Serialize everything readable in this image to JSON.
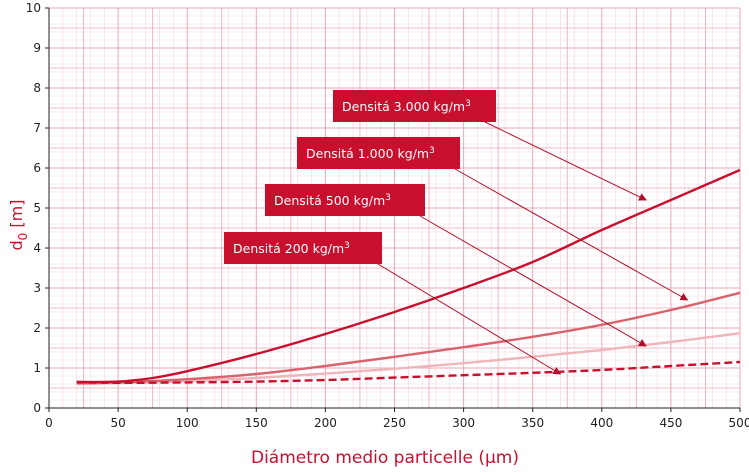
{
  "chart_data": {
    "type": "line",
    "xlabel": "Diámetro medio particelle (µm)",
    "ylabel": {
      "main": "d",
      "sub": "0",
      "rest": " [m]"
    },
    "xlim": [
      0,
      500
    ],
    "ylim": [
      0,
      10
    ],
    "x_ticks": [
      0,
      50,
      100,
      150,
      200,
      250,
      300,
      350,
      400,
      450,
      500
    ],
    "y_ticks": [
      0,
      1,
      2,
      3,
      4,
      5,
      6,
      7,
      8,
      9,
      10
    ],
    "grid": true,
    "colors": {
      "grid_major": "#e9a9b4",
      "grid_minor": "#f6d6dc",
      "series_3000": "#c8102e",
      "series_1000": "#d9636d",
      "series_500": "#efb5bb",
      "series_200": "#c8102e",
      "label_box": "#c8102e",
      "arrow": "#b0102a"
    },
    "series": [
      {
        "key": "s3000",
        "style": "solid",
        "color_key": "series_3000",
        "x": [
          20,
          50,
          75,
          100,
          150,
          200,
          250,
          300,
          350,
          400,
          450,
          500
        ],
        "y": [
          0.65,
          0.66,
          0.75,
          0.92,
          1.35,
          1.85,
          2.4,
          3.0,
          3.65,
          4.45,
          5.2,
          5.95
        ]
      },
      {
        "key": "s1000",
        "style": "solid",
        "color_key": "series_1000",
        "x": [
          20,
          50,
          100,
          150,
          200,
          250,
          300,
          350,
          400,
          450,
          500
        ],
        "y": [
          0.62,
          0.64,
          0.72,
          0.85,
          1.05,
          1.28,
          1.52,
          1.78,
          2.08,
          2.45,
          2.88
        ]
      },
      {
        "key": "s500",
        "style": "solid",
        "color_key": "series_500",
        "x": [
          20,
          50,
          100,
          150,
          200,
          250,
          300,
          350,
          400,
          450,
          500
        ],
        "y": [
          0.6,
          0.62,
          0.67,
          0.75,
          0.86,
          0.98,
          1.12,
          1.28,
          1.45,
          1.65,
          1.87
        ]
      },
      {
        "key": "s200",
        "style": "dashed",
        "color_key": "series_200",
        "x": [
          20,
          50,
          100,
          150,
          200,
          250,
          300,
          350,
          400,
          450,
          500
        ],
        "y": [
          0.65,
          0.63,
          0.64,
          0.66,
          0.7,
          0.76,
          0.82,
          0.88,
          0.95,
          1.05,
          1.15
        ]
      }
    ],
    "annotations": [
      {
        "text": "Densitá 3.000 kg/m",
        "sup": "3",
        "series": "s3000",
        "target": [
          432,
          5.2
        ]
      },
      {
        "text": "Densitá 1.000 kg/m",
        "sup": "3",
        "series": "s1000",
        "target": [
          462,
          2.7
        ]
      },
      {
        "text": "Densitá 500 kg/m",
        "sup": "3",
        "series": "s500",
        "target": [
          432,
          1.55
        ]
      },
      {
        "text": "Densitá 200 kg/m",
        "sup": "3",
        "series": "s200",
        "target": [
          370,
          0.85
        ]
      }
    ]
  }
}
